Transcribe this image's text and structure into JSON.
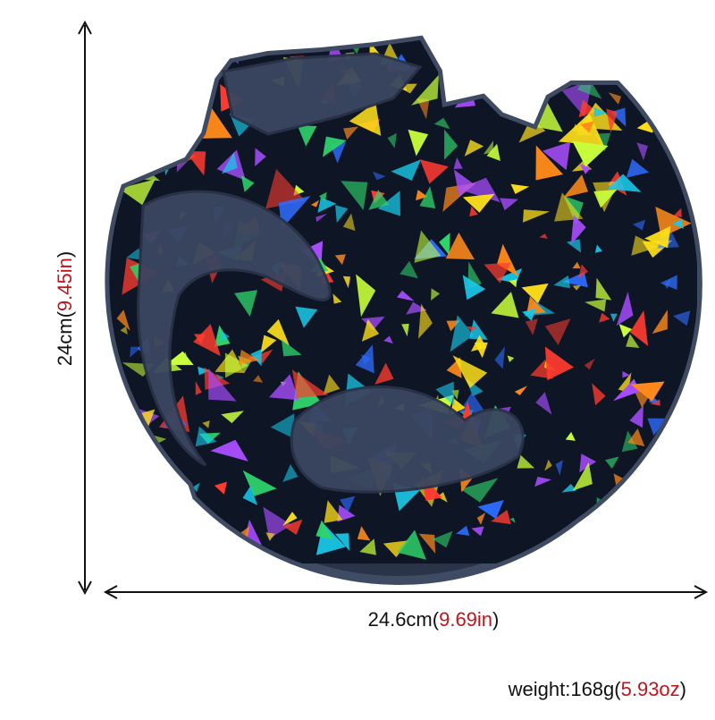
{
  "height_label": {
    "metric": "24cm(",
    "imperial": "9.45in",
    "close": ")"
  },
  "width_label": {
    "metric": "24.6cm(",
    "imperial": "9.69in",
    "close": ")"
  },
  "weight_label": {
    "metric": "weight:168g(",
    "imperial": "5.93oz",
    "close": ")"
  }
}
